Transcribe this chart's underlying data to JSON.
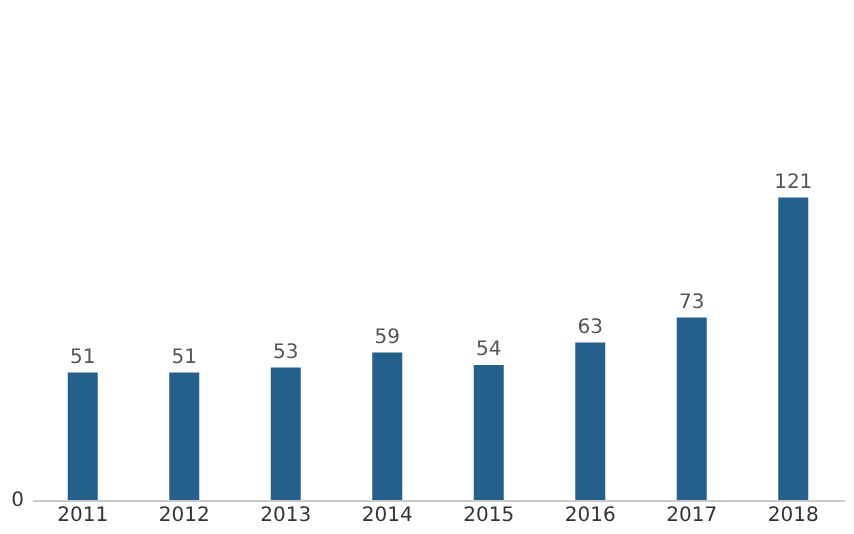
{
  "chart_data": {
    "type": "bar",
    "categories": [
      "2011",
      "2012",
      "2013",
      "2014",
      "2015",
      "2016",
      "2017",
      "2018"
    ],
    "values": [
      51,
      51,
      53,
      59,
      54,
      63,
      73,
      121
    ],
    "data_labels": true,
    "color": "#255f8c",
    "annotations": [
      "0"
    ]
  }
}
